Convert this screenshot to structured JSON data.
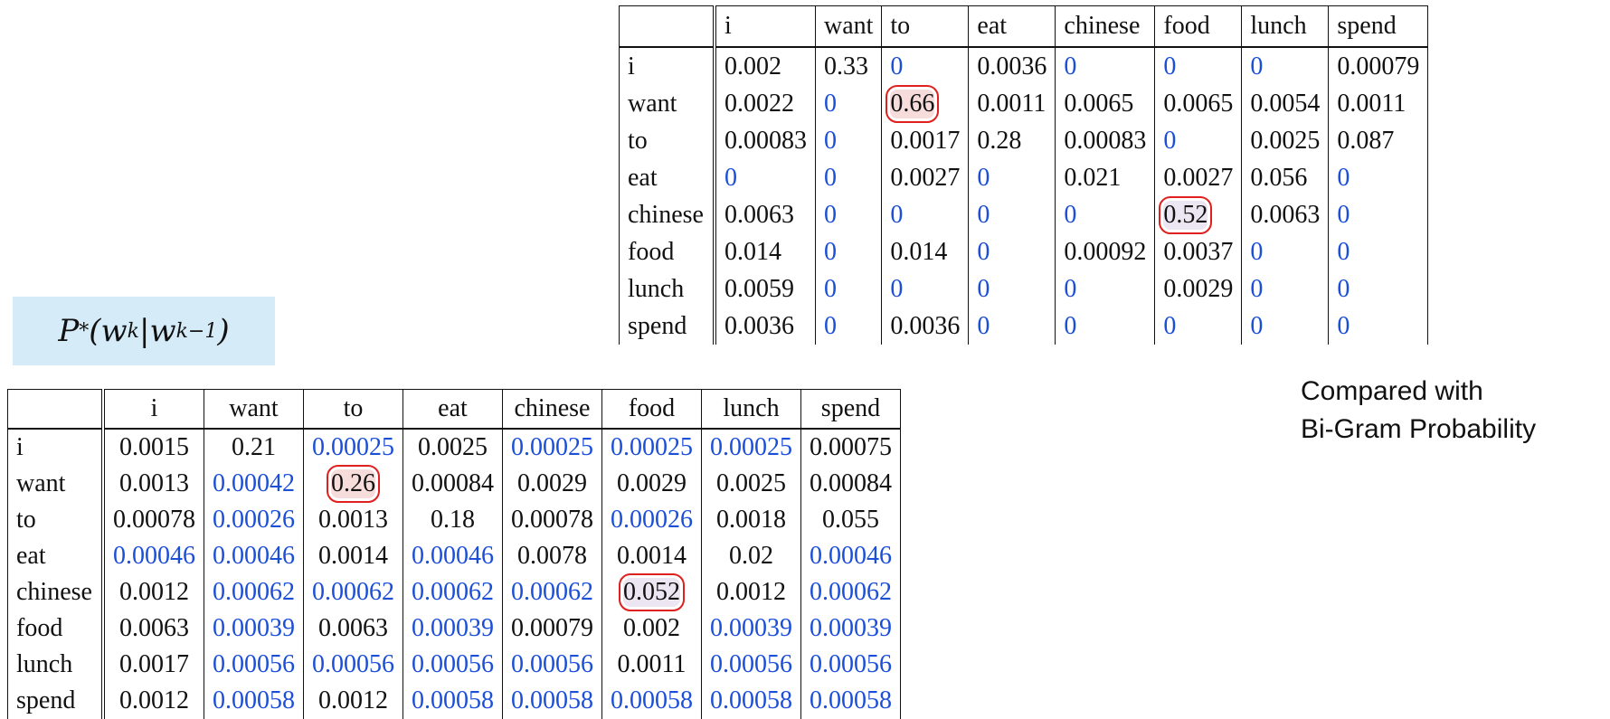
{
  "formula": "P*(w_k|w_{k-1})",
  "formula_parts": {
    "p": "P",
    "star": "*",
    "open": "(",
    "w1": "w",
    "k1": "k",
    "bar": "|",
    "w2": "w",
    "k2": "k−1",
    "close": ")"
  },
  "compare": {
    "line1": "Compared with",
    "line2": "Bi-Gram Probability"
  },
  "top_table": {
    "columns": [
      "",
      "i",
      "want",
      "to",
      "eat",
      "chinese",
      "food",
      "lunch",
      "spend"
    ],
    "rows": [
      {
        "label": "i",
        "cells": [
          "0.002",
          "0.33",
          "0",
          "0.0036",
          "0",
          "0",
          "0",
          "0.00079"
        ]
      },
      {
        "label": "want",
        "cells": [
          "0.0022",
          "0",
          "0.66",
          "0.0011",
          "0.0065",
          "0.0065",
          "0.0054",
          "0.0011"
        ]
      },
      {
        "label": "to",
        "cells": [
          "0.00083",
          "0",
          "0.0017",
          "0.28",
          "0.00083",
          "0",
          "0.0025",
          "0.087"
        ]
      },
      {
        "label": "eat",
        "cells": [
          "0",
          "0",
          "0.0027",
          "0",
          "0.021",
          "0.0027",
          "0.056",
          "0"
        ]
      },
      {
        "label": "chinese",
        "cells": [
          "0.0063",
          "0",
          "0",
          "0",
          "0",
          "0.52",
          "0.0063",
          "0"
        ]
      },
      {
        "label": "food",
        "cells": [
          "0.014",
          "0",
          "0.014",
          "0",
          "0.00092",
          "0.0037",
          "0",
          "0"
        ]
      },
      {
        "label": "lunch",
        "cells": [
          "0.0059",
          "0",
          "0",
          "0",
          "0",
          "0.0029",
          "0",
          "0"
        ]
      },
      {
        "label": "spend",
        "cells": [
          "0.0036",
          "0",
          "0.0036",
          "0",
          "0",
          "0",
          "0",
          "0"
        ]
      }
    ]
  },
  "bottom_table": {
    "columns": [
      "",
      "i",
      "want",
      "to",
      "eat",
      "chinese",
      "food",
      "lunch",
      "spend"
    ],
    "rows": [
      {
        "label": "i",
        "cells": [
          "0.0015",
          "0.21",
          "0.00025",
          "0.0025",
          "0.00025",
          "0.00025",
          "0.00025",
          "0.00075"
        ]
      },
      {
        "label": "want",
        "cells": [
          "0.0013",
          "0.00042",
          "0.26",
          "0.00084",
          "0.0029",
          "0.0029",
          "0.0025",
          "0.00084"
        ]
      },
      {
        "label": "to",
        "cells": [
          "0.00078",
          "0.00026",
          "0.0013",
          "0.18",
          "0.00078",
          "0.00026",
          "0.0018",
          "0.055"
        ]
      },
      {
        "label": "eat",
        "cells": [
          "0.00046",
          "0.00046",
          "0.0014",
          "0.00046",
          "0.0078",
          "0.0014",
          "0.02",
          "0.00046"
        ]
      },
      {
        "label": "chinese",
        "cells": [
          "0.0012",
          "0.00062",
          "0.00062",
          "0.00062",
          "0.00062",
          "0.052",
          "0.0012",
          "0.00062"
        ]
      },
      {
        "label": "food",
        "cells": [
          "0.0063",
          "0.00039",
          "0.0063",
          "0.00039",
          "0.00079",
          "0.002",
          "0.00039",
          "0.00039"
        ]
      },
      {
        "label": "lunch",
        "cells": [
          "0.0017",
          "0.00056",
          "0.00056",
          "0.00056",
          "0.00056",
          "0.0011",
          "0.00056",
          "0.00056"
        ]
      },
      {
        "label": "spend",
        "cells": [
          "0.0012",
          "0.00058",
          "0.0012",
          "0.00058",
          "0.00058",
          "0.00058",
          "0.00058",
          "0.00058"
        ]
      }
    ]
  },
  "colors": {
    "zero_value": "#1c4fd8",
    "highlight_border": "#e0201e",
    "formula_bg": "#d5ecf8"
  }
}
